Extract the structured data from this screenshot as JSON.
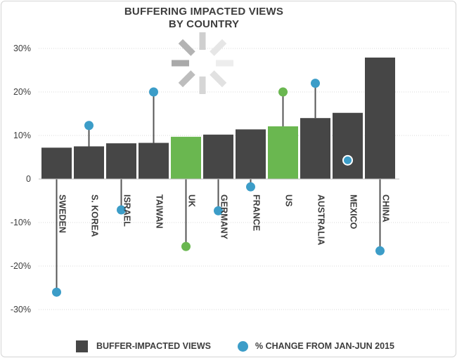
{
  "chart_data": {
    "type": "bar",
    "title_line1": "BUFFERING IMPACTED VIEWS",
    "title_line2": "BY COUNTRY",
    "categories": [
      "SWEDEN",
      "S. KOREA",
      "ISRAEL",
      "TAIWAN",
      "UK",
      "GERMANY",
      "FRANCE",
      "US",
      "AUSTRALIA",
      "MEXICO",
      "CHINA"
    ],
    "ytick_labels": [
      "30%",
      "20%",
      "10%",
      "0",
      "-10%",
      "-20%",
      "-30%"
    ],
    "ylim": [
      -30,
      30
    ],
    "series": [
      {
        "name": "BUFFER-IMPACTED VIEWS",
        "type": "bar",
        "values": [
          7.2,
          7.5,
          8.2,
          8.3,
          9.7,
          10.2,
          11.4,
          12.1,
          14.0,
          15.2,
          27.9
        ],
        "highlighted": [
          false,
          false,
          false,
          false,
          true,
          false,
          false,
          true,
          false,
          false,
          false
        ]
      },
      {
        "name": "% CHANGE FROM JAN-JUN 2015",
        "type": "scatter",
        "values": [
          -26,
          12.3,
          -7.1,
          20,
          -15.5,
          -7.3,
          -1.8,
          20,
          22,
          4.3,
          -16.5
        ]
      }
    ],
    "colors": {
      "bar": "#464646",
      "bar_highlight": "#6ab750",
      "point": "#3c9dc8",
      "point_highlight": "#6ab750",
      "stem": "#555555",
      "grid": "#d9d9d9"
    },
    "grid": true
  },
  "legend": {
    "bar_label": "BUFFER-IMPACTED VIEWS",
    "point_label": "% CHANGE FROM JAN-JUN 2015"
  },
  "overlay": {
    "icon": "loading-spinner-icon"
  }
}
